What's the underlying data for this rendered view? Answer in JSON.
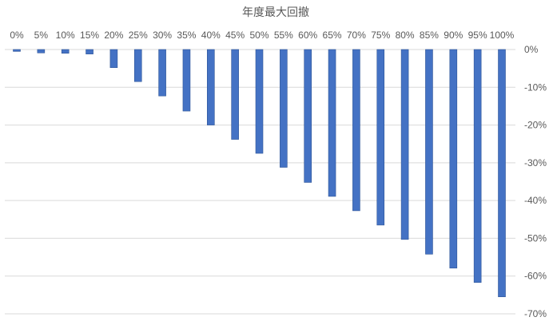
{
  "chart_data": {
    "type": "bar",
    "title": "年度最大回撤",
    "categories": [
      "0%",
      "5%",
      "10%",
      "15%",
      "20%",
      "25%",
      "30%",
      "35%",
      "40%",
      "45%",
      "50%",
      "55%",
      "60%",
      "65%",
      "70%",
      "75%",
      "80%",
      "85%",
      "90%",
      "95%",
      "100%"
    ],
    "values": [
      -0.5,
      -0.9,
      -1.0,
      -1.2,
      -4.8,
      -8.5,
      -12.3,
      -16.3,
      -20.0,
      -23.8,
      -27.5,
      -31.2,
      -35.2,
      -38.9,
      -42.7,
      -46.5,
      -50.3,
      -54.2,
      -57.9,
      -61.7,
      -65.5
    ],
    "ylim": [
      -70,
      0
    ],
    "yticks": [
      0,
      -10,
      -20,
      -30,
      -40,
      -50,
      -60,
      -70
    ],
    "ytick_labels": [
      "0%",
      "-10%",
      "-20%",
      "-30%",
      "-40%",
      "-50%",
      "-60%",
      "-70%"
    ],
    "x_axis_position": "top",
    "y_axis_position": "right",
    "grid": true,
    "bar_color": "#4472c4",
    "bar_border_color": "#2f5597",
    "grid_color": "#d9d9d9",
    "text_color": "#595959"
  }
}
